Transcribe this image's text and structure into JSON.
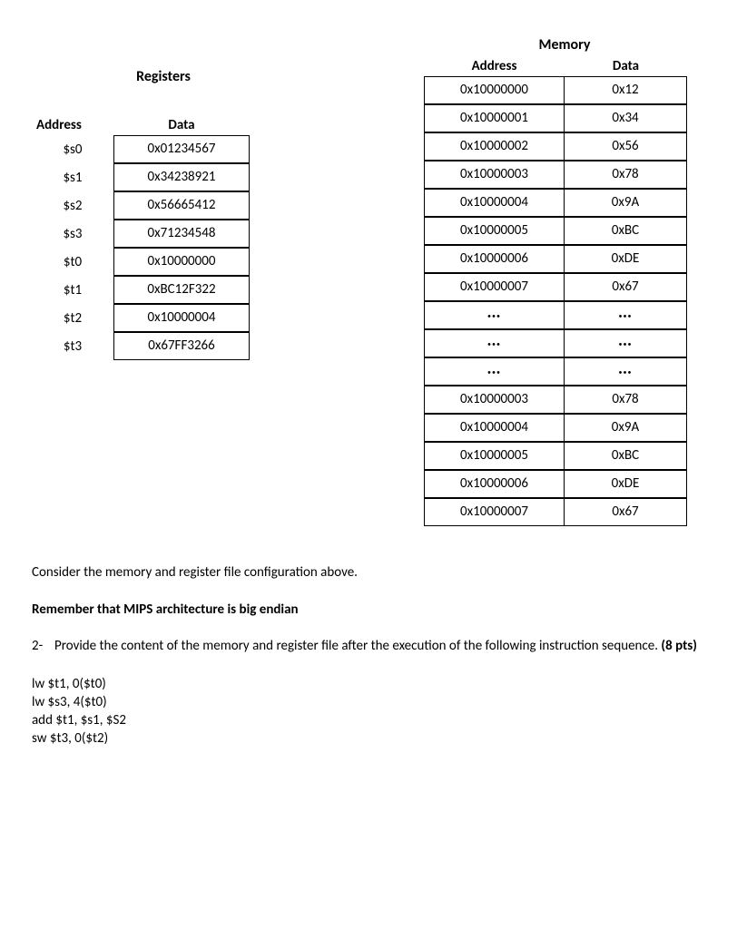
{
  "registers": {
    "title": "Registers",
    "headers": {
      "address": "Address",
      "data": "Data"
    },
    "rows": [
      {
        "addr": "$s0",
        "data": "0x01234567"
      },
      {
        "addr": "$s1",
        "data": "0x34238921"
      },
      {
        "addr": "$s2",
        "data": "0x56665412"
      },
      {
        "addr": "$s3",
        "data": "0x71234548"
      },
      {
        "addr": "$t0",
        "data": "0x10000000"
      },
      {
        "addr": "$t1",
        "data": "0xBC12F322"
      },
      {
        "addr": "$t2",
        "data": "0x10000004"
      },
      {
        "addr": "$t3",
        "data": "0x67FF3266"
      }
    ]
  },
  "memory": {
    "title": "Memory",
    "headers": {
      "address": "Address",
      "data": "Data"
    },
    "rows": [
      {
        "addr": "0x10000000",
        "data": "0x12"
      },
      {
        "addr": "0x10000001",
        "data": "0x34"
      },
      {
        "addr": "0x10000002",
        "data": "0x56"
      },
      {
        "addr": "0x10000003",
        "data": "0x78"
      },
      {
        "addr": "0x10000004",
        "data": "0x9A"
      },
      {
        "addr": "0x10000005",
        "data": "0xBC"
      },
      {
        "addr": "0x10000006",
        "data": "0xDE"
      },
      {
        "addr": "0x10000007",
        "data": "0x67"
      },
      {
        "addr": "•••",
        "data": "•••",
        "dots": true
      },
      {
        "addr": "•••",
        "data": "•••",
        "dots": true
      },
      {
        "addr": "•••",
        "data": "•••",
        "dots": true
      },
      {
        "addr": "0x10000003",
        "data": "0x78"
      },
      {
        "addr": "0x10000004",
        "data": "0x9A"
      },
      {
        "addr": "0x10000005",
        "data": "0xBC"
      },
      {
        "addr": "0x10000006",
        "data": "0xDE"
      },
      {
        "addr": "0x10000007",
        "data": "0x67"
      }
    ]
  },
  "text": {
    "intro": "Consider the memory and register file configuration above.",
    "bold": "Remember that MIPS architecture is big endian",
    "qnum": "2-",
    "qtext": "Provide the content of the memory and register file after the execution of the following instruction sequence. ",
    "qpts": "(8 pts)",
    "code": [
      "lw $t1, 0($t0)",
      "lw $s3, 4($t0)",
      "add $t1, $s1, $S2",
      "sw $t3, 0($t2)"
    ]
  }
}
